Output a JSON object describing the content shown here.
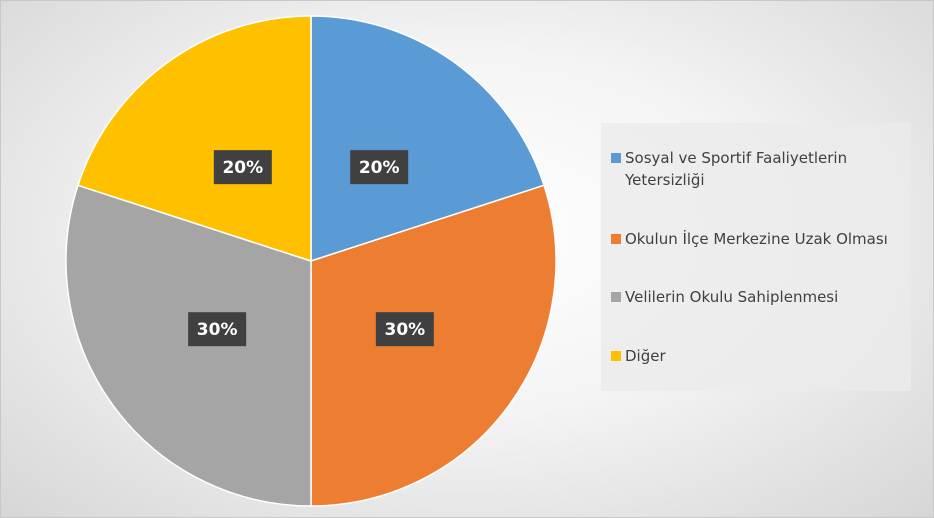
{
  "chart_data": {
    "type": "pie",
    "categories": [
      "Sosyal ve Sportif Faaliyetlerin Yetersizliği",
      "Okulun İlçe Merkezine Uzak Olması",
      "Velilerin Okulu Sahiplenmesi",
      "Diğer"
    ],
    "values": [
      20,
      30,
      30,
      20
    ],
    "value_labels": [
      "20%",
      "30%",
      "30%",
      "20%"
    ],
    "colors": [
      "#5b9bd5",
      "#ed7d31",
      "#a5a5a5",
      "#ffc000"
    ],
    "legend": "right"
  }
}
